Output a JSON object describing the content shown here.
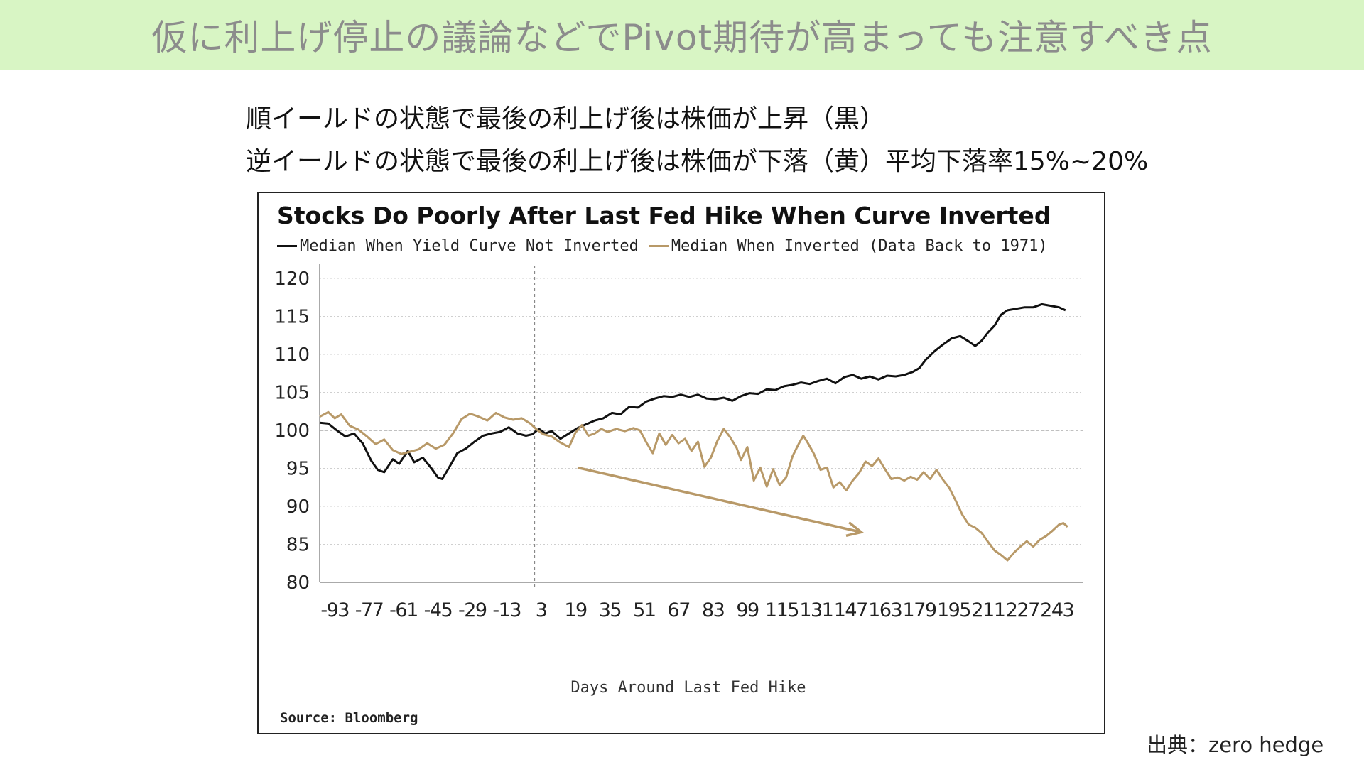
{
  "header": {
    "title": "仮に利上げ停止の議論などでPivot期待が高まっても注意すべき点"
  },
  "subtitles": {
    "line1": "順イールドの状態で最後の利上げ後は株価が上昇（黒）",
    "line2": "逆イールドの状態で最後の利上げ後は株価が下落（黄）平均下落率15%~20%"
  },
  "credit": "出典：zero hedge",
  "colors": {
    "banner_bg": "#d8f5c4",
    "not_inverted": "#111111",
    "inverted": "#b89968"
  },
  "chart_data": {
    "type": "line",
    "title": "Stocks Do Poorly After Last Fed Hike When Curve Inverted",
    "legend": [
      {
        "name": "Median When Yield Curve Not Inverted",
        "color": "#111111"
      },
      {
        "name": "Median When Inverted (Data Back to 1971)",
        "color": "#b89968"
      }
    ],
    "xlabel": "Days Around Last Fed Hike",
    "ylabel": "",
    "source": "Source: Bloomberg",
    "xlim": [
      -100,
      255
    ],
    "ylim": [
      80,
      120
    ],
    "xticks": [
      -93,
      -77,
      -61,
      -45,
      -29,
      -13,
      3,
      19,
      35,
      51,
      67,
      83,
      99,
      115,
      131,
      147,
      163,
      179,
      195,
      211,
      227,
      243
    ],
    "yticks": [
      80,
      85,
      90,
      95,
      100,
      105,
      110,
      115,
      120
    ],
    "reference_lines": {
      "vertical_x": 0,
      "horizontal_y": 100
    },
    "series": [
      {
        "name": "Median When Yield Curve Not Inverted",
        "color": "#111111",
        "points": [
          [
            -100,
            101
          ],
          [
            -96,
            100.9
          ],
          [
            -92,
            100
          ],
          [
            -88,
            99.2
          ],
          [
            -84,
            99.6
          ],
          [
            -80,
            98.3
          ],
          [
            -76,
            96
          ],
          [
            -73,
            94.8
          ],
          [
            -70,
            94.5
          ],
          [
            -66,
            96.2
          ],
          [
            -63,
            95.6
          ],
          [
            -59,
            97.3
          ],
          [
            -56,
            95.8
          ],
          [
            -52,
            96.4
          ],
          [
            -48,
            95
          ],
          [
            -45,
            93.8
          ],
          [
            -43,
            93.6
          ],
          [
            -40,
            95
          ],
          [
            -36,
            97
          ],
          [
            -32,
            97.6
          ],
          [
            -28,
            98.5
          ],
          [
            -24,
            99.3
          ],
          [
            -20,
            99.6
          ],
          [
            -16,
            99.8
          ],
          [
            -12,
            100.4
          ],
          [
            -8,
            99.6
          ],
          [
            -4,
            99.3
          ],
          [
            -1,
            99.5
          ],
          [
            2,
            100.2
          ],
          [
            5,
            99.6
          ],
          [
            8,
            99.9
          ],
          [
            12,
            98.9
          ],
          [
            16,
            99.6
          ],
          [
            20,
            100.3
          ],
          [
            24,
            100.8
          ],
          [
            28,
            101.3
          ],
          [
            32,
            101.6
          ],
          [
            36,
            102.3
          ],
          [
            40,
            102.1
          ],
          [
            44,
            103.1
          ],
          [
            48,
            103
          ],
          [
            52,
            103.8
          ],
          [
            56,
            104.2
          ],
          [
            60,
            104.5
          ],
          [
            64,
            104.4
          ],
          [
            68,
            104.7
          ],
          [
            72,
            104.4
          ],
          [
            76,
            104.7
          ],
          [
            80,
            104.2
          ],
          [
            84,
            104.1
          ],
          [
            88,
            104.3
          ],
          [
            92,
            103.9
          ],
          [
            96,
            104.5
          ],
          [
            100,
            104.9
          ],
          [
            104,
            104.8
          ],
          [
            108,
            105.4
          ],
          [
            112,
            105.3
          ],
          [
            116,
            105.8
          ],
          [
            120,
            106
          ],
          [
            124,
            106.3
          ],
          [
            128,
            106.1
          ],
          [
            132,
            106.5
          ],
          [
            136,
            106.8
          ],
          [
            140,
            106.2
          ],
          [
            144,
            107
          ],
          [
            148,
            107.3
          ],
          [
            152,
            106.8
          ],
          [
            156,
            107.1
          ],
          [
            160,
            106.7
          ],
          [
            164,
            107.2
          ],
          [
            168,
            107.1
          ],
          [
            172,
            107.3
          ],
          [
            176,
            107.7
          ],
          [
            179,
            108.2
          ],
          [
            182,
            109.3
          ],
          [
            186,
            110.4
          ],
          [
            190,
            111.3
          ],
          [
            194,
            112.1
          ],
          [
            198,
            112.4
          ],
          [
            202,
            111.7
          ],
          [
            205,
            111.1
          ],
          [
            208,
            111.8
          ],
          [
            211,
            112.9
          ],
          [
            214,
            113.8
          ],
          [
            217,
            115.2
          ],
          [
            220,
            115.8
          ],
          [
            224,
            116
          ],
          [
            228,
            116.2
          ],
          [
            232,
            116.2
          ],
          [
            236,
            116.6
          ],
          [
            240,
            116.4
          ],
          [
            244,
            116.2
          ],
          [
            247,
            115.8
          ]
        ]
      },
      {
        "name": "Median When Inverted (Data Back to 1971)",
        "color": "#b89968",
        "points": [
          [
            -100,
            101.8
          ],
          [
            -96,
            102.4
          ],
          [
            -93,
            101.6
          ],
          [
            -90,
            102.1
          ],
          [
            -86,
            100.6
          ],
          [
            -82,
            100.1
          ],
          [
            -78,
            99.2
          ],
          [
            -74,
            98.2
          ],
          [
            -70,
            98.8
          ],
          [
            -66,
            97.4
          ],
          [
            -62,
            96.9
          ],
          [
            -58,
            97.2
          ],
          [
            -54,
            97.5
          ],
          [
            -50,
            98.3
          ],
          [
            -46,
            97.6
          ],
          [
            -42,
            98.1
          ],
          [
            -38,
            99.6
          ],
          [
            -34,
            101.5
          ],
          [
            -30,
            102.2
          ],
          [
            -26,
            101.8
          ],
          [
            -22,
            101.3
          ],
          [
            -18,
            102.3
          ],
          [
            -14,
            101.7
          ],
          [
            -10,
            101.4
          ],
          [
            -6,
            101.6
          ],
          [
            -2,
            100.9
          ],
          [
            1,
            100.1
          ],
          [
            4,
            99.5
          ],
          [
            8,
            99.2
          ],
          [
            12,
            98.4
          ],
          [
            16,
            97.8
          ],
          [
            19,
            99.7
          ],
          [
            22,
            100.7
          ],
          [
            25,
            99.3
          ],
          [
            28,
            99.6
          ],
          [
            31,
            100.2
          ],
          [
            34,
            99.8
          ],
          [
            38,
            100.2
          ],
          [
            42,
            99.9
          ],
          [
            46,
            100.3
          ],
          [
            49,
            100
          ],
          [
            52,
            98.4
          ],
          [
            55,
            97
          ],
          [
            58,
            99.6
          ],
          [
            61,
            98.1
          ],
          [
            64,
            99.4
          ],
          [
            67,
            98.3
          ],
          [
            70,
            98.9
          ],
          [
            73,
            97.3
          ],
          [
            76,
            98.5
          ],
          [
            79,
            95.2
          ],
          [
            82,
            96.4
          ],
          [
            85,
            98.6
          ],
          [
            88,
            100.2
          ],
          [
            91,
            99.1
          ],
          [
            94,
            97.7
          ],
          [
            96,
            96.1
          ],
          [
            99,
            97.8
          ],
          [
            102,
            93.4
          ],
          [
            105,
            95.1
          ],
          [
            108,
            92.6
          ],
          [
            111,
            94.9
          ],
          [
            114,
            92.8
          ],
          [
            117,
            93.8
          ],
          [
            120,
            96.6
          ],
          [
            123,
            98.3
          ],
          [
            125,
            99.3
          ],
          [
            127,
            98.4
          ],
          [
            130,
            96.9
          ],
          [
            133,
            94.8
          ],
          [
            136,
            95.1
          ],
          [
            139,
            92.5
          ],
          [
            142,
            93.2
          ],
          [
            145,
            92.1
          ],
          [
            148,
            93.4
          ],
          [
            151,
            94.4
          ],
          [
            154,
            95.9
          ],
          [
            157,
            95.3
          ],
          [
            160,
            96.3
          ],
          [
            163,
            94.9
          ],
          [
            166,
            93.6
          ],
          [
            169,
            93.8
          ],
          [
            172,
            93.4
          ],
          [
            175,
            93.9
          ],
          [
            178,
            93.5
          ],
          [
            181,
            94.5
          ],
          [
            184,
            93.6
          ],
          [
            187,
            94.8
          ],
          [
            190,
            93.5
          ],
          [
            193,
            92.4
          ],
          [
            196,
            90.7
          ],
          [
            199,
            88.9
          ],
          [
            202,
            87.6
          ],
          [
            205,
            87.2
          ],
          [
            208,
            86.5
          ],
          [
            211,
            85.3
          ],
          [
            214,
            84.2
          ],
          [
            217,
            83.6
          ],
          [
            220,
            82.9
          ],
          [
            223,
            83.9
          ],
          [
            226,
            84.7
          ],
          [
            229,
            85.4
          ],
          [
            232,
            84.7
          ],
          [
            235,
            85.6
          ],
          [
            238,
            86.1
          ],
          [
            241,
            86.8
          ],
          [
            244,
            87.6
          ],
          [
            246,
            87.8
          ],
          [
            248,
            87.3
          ]
        ]
      }
    ],
    "annotation": {
      "type": "arrow",
      "from": [
        20,
        95.1
      ],
      "to": [
        152,
        86.6
      ],
      "color": "#b89968"
    }
  }
}
